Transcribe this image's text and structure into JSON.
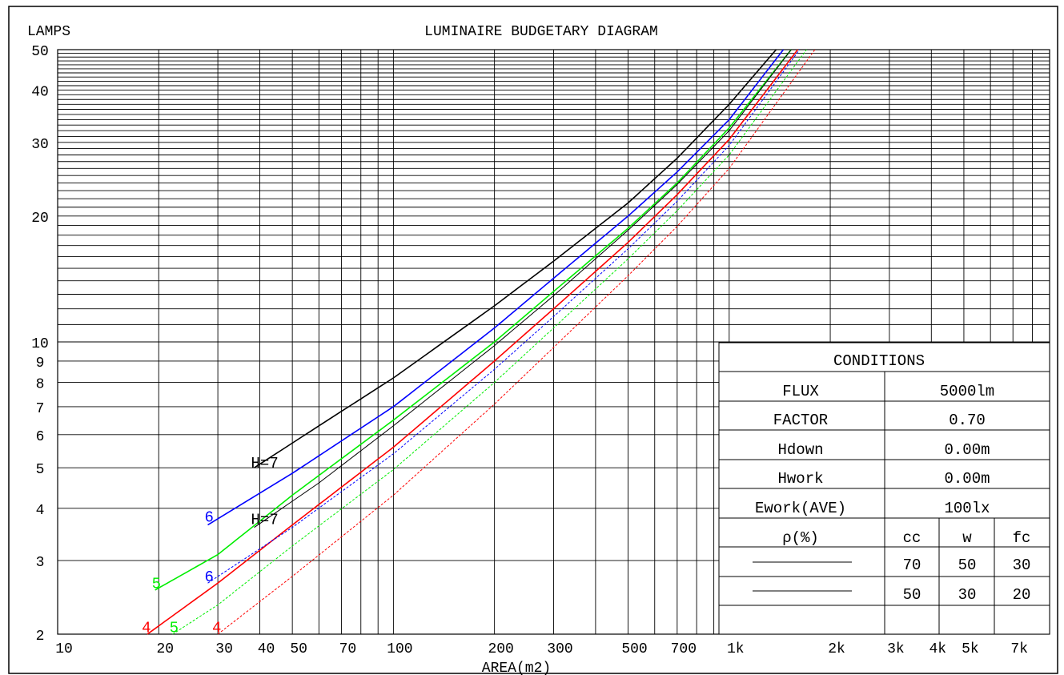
{
  "chart_data": {
    "type": "line",
    "title": "LUMINAIRE BUDGETARY DIAGRAM",
    "xlabel": "AREA(m2)",
    "ylabel": "LAMPS",
    "x_scale": "log",
    "y_scale": "log",
    "xlim": [
      10,
      9000
    ],
    "ylim": [
      2,
      50
    ],
    "x_ticks": [
      {
        "value": 10,
        "label": "10"
      },
      {
        "value": 20,
        "label": "20"
      },
      {
        "value": 30,
        "label": "30"
      },
      {
        "value": 40,
        "label": "40"
      },
      {
        "value": 50,
        "label": "50"
      },
      {
        "value": 70,
        "label": "70"
      },
      {
        "value": 100,
        "label": "100"
      },
      {
        "value": 200,
        "label": "200"
      },
      {
        "value": 300,
        "label": "300"
      },
      {
        "value": 500,
        "label": "500"
      },
      {
        "value": 700,
        "label": "700"
      },
      {
        "value": 1000,
        "label": "1k"
      },
      {
        "value": 2000,
        "label": "2k"
      },
      {
        "value": 3000,
        "label": "3k"
      },
      {
        "value": 4000,
        "label": "4k"
      },
      {
        "value": 5000,
        "label": "5k"
      },
      {
        "value": 7000,
        "label": "7k"
      }
    ],
    "y_ticks": [
      {
        "value": 2,
        "label": "2"
      },
      {
        "value": 3,
        "label": "3"
      },
      {
        "value": 4,
        "label": "4"
      },
      {
        "value": 5,
        "label": "5"
      },
      {
        "value": 6,
        "label": "6"
      },
      {
        "value": 7,
        "label": "7"
      },
      {
        "value": 8,
        "label": "8"
      },
      {
        "value": 9,
        "label": "9"
      },
      {
        "value": 10,
        "label": "10"
      },
      {
        "value": 20,
        "label": "20"
      },
      {
        "value": 30,
        "label": "30"
      },
      {
        "value": 40,
        "label": "40"
      },
      {
        "value": 50,
        "label": "50"
      }
    ],
    "x_grid_values": [
      10,
      20,
      30,
      40,
      50,
      60,
      70,
      80,
      90,
      100,
      200,
      300,
      400,
      500,
      600,
      700,
      800,
      900,
      1000,
      2000,
      3000,
      4000,
      5000,
      6000,
      7000,
      8000,
      9000
    ],
    "y_grid_values": [
      2,
      3,
      4,
      5,
      6,
      7,
      8,
      9,
      10,
      11,
      12,
      13,
      14,
      15,
      16,
      17,
      18,
      19,
      20,
      21,
      22,
      23,
      24,
      25,
      26,
      27,
      28,
      29,
      30,
      31,
      32,
      33,
      34,
      35,
      36,
      37,
      38,
      39,
      40,
      41,
      42,
      43,
      44,
      45,
      46,
      47,
      48,
      49,
      50
    ],
    "grid": true,
    "series": [
      {
        "color": "#000000",
        "style": "solid",
        "points": [
          [
            38.5,
            5.0
          ],
          [
            60,
            6.3
          ],
          [
            100,
            8.2
          ],
          [
            200,
            12.2
          ],
          [
            300,
            15.6
          ],
          [
            500,
            21.5
          ],
          [
            700,
            27.5
          ],
          [
            1000,
            37.0
          ],
          [
            1380,
            50.0
          ]
        ]
      },
      {
        "color": "#0000ff",
        "style": "solid",
        "points": [
          [
            28,
            3.65
          ],
          [
            50,
            4.85
          ],
          [
            100,
            7.0
          ],
          [
            200,
            10.8
          ],
          [
            300,
            14.2
          ],
          [
            500,
            20.0
          ],
          [
            700,
            25.5
          ],
          [
            1000,
            34.0
          ],
          [
            1450,
            50.0
          ]
        ]
      },
      {
        "color": "#00ee00",
        "style": "solid",
        "points": [
          [
            19.5,
            2.55
          ],
          [
            30,
            3.1
          ],
          [
            50,
            4.3
          ],
          [
            100,
            6.5
          ],
          [
            200,
            10.0
          ],
          [
            300,
            13.2
          ],
          [
            500,
            18.7
          ],
          [
            700,
            24.0
          ],
          [
            1000,
            32.5
          ],
          [
            1530,
            50.0
          ]
        ]
      },
      {
        "color": "#ff0000",
        "style": "solid",
        "points": [
          [
            18.5,
            2.0
          ],
          [
            30,
            2.65
          ],
          [
            50,
            3.65
          ],
          [
            100,
            5.6
          ],
          [
            200,
            9.0
          ],
          [
            300,
            12.0
          ],
          [
            500,
            17.3
          ],
          [
            700,
            22.5
          ],
          [
            1000,
            30.5
          ],
          [
            1600,
            50.0
          ]
        ]
      },
      {
        "color": "#000000",
        "style": "thin",
        "points": [
          [
            38.5,
            3.6
          ],
          [
            60,
            4.6
          ],
          [
            100,
            6.3
          ],
          [
            200,
            9.8
          ],
          [
            300,
            12.9
          ],
          [
            500,
            18.5
          ],
          [
            700,
            23.8
          ],
          [
            1000,
            32.0
          ],
          [
            1530,
            50.0
          ]
        ]
      },
      {
        "color": "#0000ff",
        "style": "dashed",
        "points": [
          [
            28,
            2.65
          ],
          [
            50,
            3.6
          ],
          [
            100,
            5.4
          ],
          [
            200,
            8.6
          ],
          [
            300,
            11.5
          ],
          [
            500,
            16.7
          ],
          [
            700,
            21.7
          ],
          [
            1000,
            29.5
          ],
          [
            1620,
            50.0
          ]
        ]
      },
      {
        "color": "#00ee00",
        "style": "dashed",
        "points": [
          [
            22,
            2.0
          ],
          [
            30,
            2.35
          ],
          [
            50,
            3.25
          ],
          [
            100,
            4.95
          ],
          [
            200,
            8.0
          ],
          [
            300,
            10.8
          ],
          [
            500,
            15.8
          ],
          [
            700,
            20.6
          ],
          [
            1000,
            28.0
          ],
          [
            1700,
            50.0
          ]
        ]
      },
      {
        "color": "#ff0000",
        "style": "dashed",
        "points": [
          [
            30,
            2.0
          ],
          [
            50,
            2.75
          ],
          [
            100,
            4.3
          ],
          [
            200,
            7.1
          ],
          [
            300,
            9.7
          ],
          [
            500,
            14.4
          ],
          [
            700,
            18.9
          ],
          [
            1000,
            26.0
          ],
          [
            1800,
            50.0
          ]
        ]
      }
    ],
    "curve_labels": [
      {
        "text": "H=7",
        "x": 38.5,
        "y": 5.05,
        "color": "#000000"
      },
      {
        "text": "H=7",
        "x": 38.5,
        "y": 3.7,
        "color": "#000000"
      },
      {
        "text": "6",
        "x": 28,
        "y": 3.75,
        "color": "#0000ff"
      },
      {
        "text": "6",
        "x": 28,
        "y": 2.7,
        "color": "#0000ff"
      },
      {
        "text": "5",
        "x": 19.5,
        "y": 2.6,
        "color": "#00ee00"
      },
      {
        "text": "5",
        "x": 22,
        "y": 2.04,
        "color": "#00ee00"
      },
      {
        "text": "4",
        "x": 18.2,
        "y": 2.04,
        "color": "#ff0000"
      },
      {
        "text": "4",
        "x": 29.5,
        "y": 2.04,
        "color": "#ff0000"
      }
    ]
  },
  "conditions": {
    "title": "CONDITIONS",
    "rows": [
      {
        "label": "FLUX",
        "value": "5000lm"
      },
      {
        "label": "FACTOR",
        "value": "0.70"
      },
      {
        "label": "Hdown",
        "value": "0.00m"
      },
      {
        "label": "Hwork",
        "value": "0.00m"
      },
      {
        "label": "Ework(AVE)",
        "value": "100lx"
      }
    ],
    "rho_label": "ρ(%)",
    "rho_headers": [
      "cc",
      "w",
      "fc"
    ],
    "rho_rows": [
      {
        "line": "solid",
        "values": [
          "70",
          "50",
          "30"
        ]
      },
      {
        "line": "solid",
        "values": [
          "50",
          "30",
          "20"
        ]
      }
    ]
  }
}
